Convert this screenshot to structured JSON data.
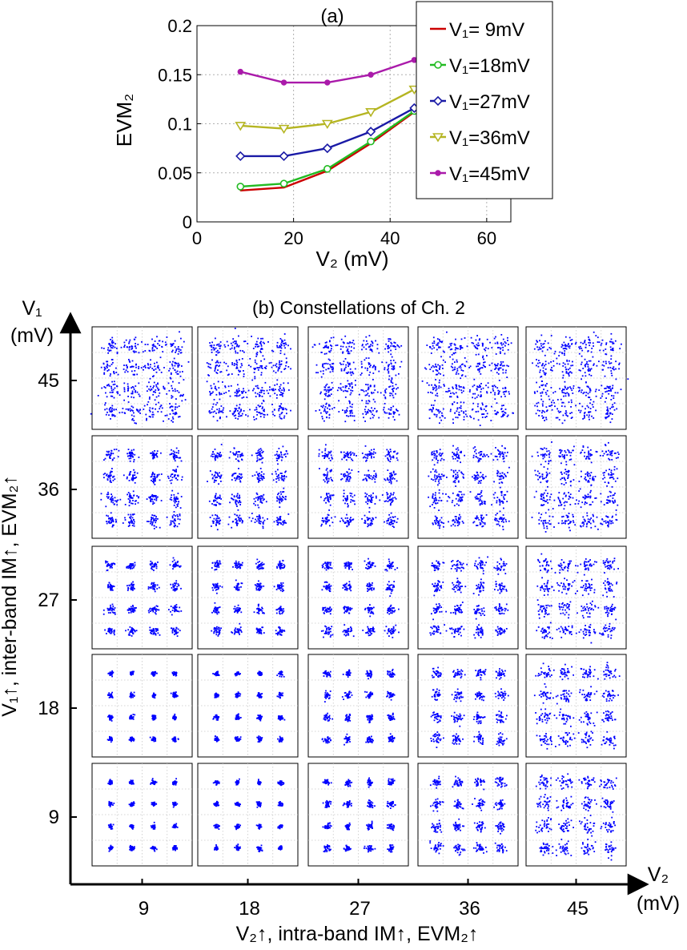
{
  "figure": {
    "panel_a_caption": "(a)",
    "panel_b_caption": "(b) Constellations of Ch. 2",
    "panel_b_x_axis_title": "V₂↑, intra-band IM↑, EVM₂↑",
    "panel_b_y_axis_title": "V₁↑, inter-band IM↑, EVM₂↑",
    "panel_b_x_arrow_label_top": "V₂",
    "panel_b_x_arrow_label_bottom": "(mV)",
    "panel_b_y_arrow_label_top": "V₁",
    "panel_b_y_arrow_label_bottom": "(mV)"
  },
  "chart_data": [
    {
      "type": "line",
      "title": "(a)",
      "xlabel": "V₂ (mV)",
      "ylabel": "EVM₂",
      "xlim": [
        0,
        65
      ],
      "ylim": [
        0,
        0.2
      ],
      "x_ticks": [
        "0",
        "20",
        "40",
        "60"
      ],
      "y_ticks": [
        "0",
        "0.05",
        "0.1",
        "0.15",
        "0.2"
      ],
      "grid": true,
      "legend_position": "top-right",
      "x": [
        9,
        18,
        27,
        36,
        45
      ],
      "series": [
        {
          "name": "V₁= 9mV",
          "color": "#cc0000",
          "marker": "none",
          "values": [
            0.032,
            0.035,
            0.052,
            0.08,
            0.112
          ]
        },
        {
          "name": "V₁=18mV",
          "color": "#22bb22",
          "marker": "circle",
          "values": [
            0.036,
            0.039,
            0.054,
            0.082,
            0.113
          ]
        },
        {
          "name": "V₁=27mV",
          "color": "#1a1aa6",
          "marker": "diamond",
          "values": [
            0.067,
            0.067,
            0.075,
            0.092,
            0.116
          ]
        },
        {
          "name": "V₁=36mV",
          "color": "#b5b522",
          "marker": "triangle-down",
          "values": [
            0.098,
            0.095,
            0.1,
            0.112,
            0.135
          ]
        },
        {
          "name": "V₁=45mV",
          "color": "#aa1aaa",
          "marker": "dot",
          "values": [
            0.153,
            0.142,
            0.142,
            0.15,
            0.165
          ]
        }
      ]
    },
    {
      "type": "scatter",
      "title": "(b) Constellations of Ch. 2",
      "xlabel": "V₂↑, intra-band IM↑, EVM₂↑",
      "ylabel": "V₁↑, inter-band IM↑, EVM₂↑",
      "x_categories": [
        "9",
        "18",
        "27",
        "36",
        "45"
      ],
      "y_categories": [
        "45",
        "36",
        "27",
        "18",
        "9"
      ],
      "constellation": "16-QAM",
      "point_color": "#0000ff"
    }
  ]
}
